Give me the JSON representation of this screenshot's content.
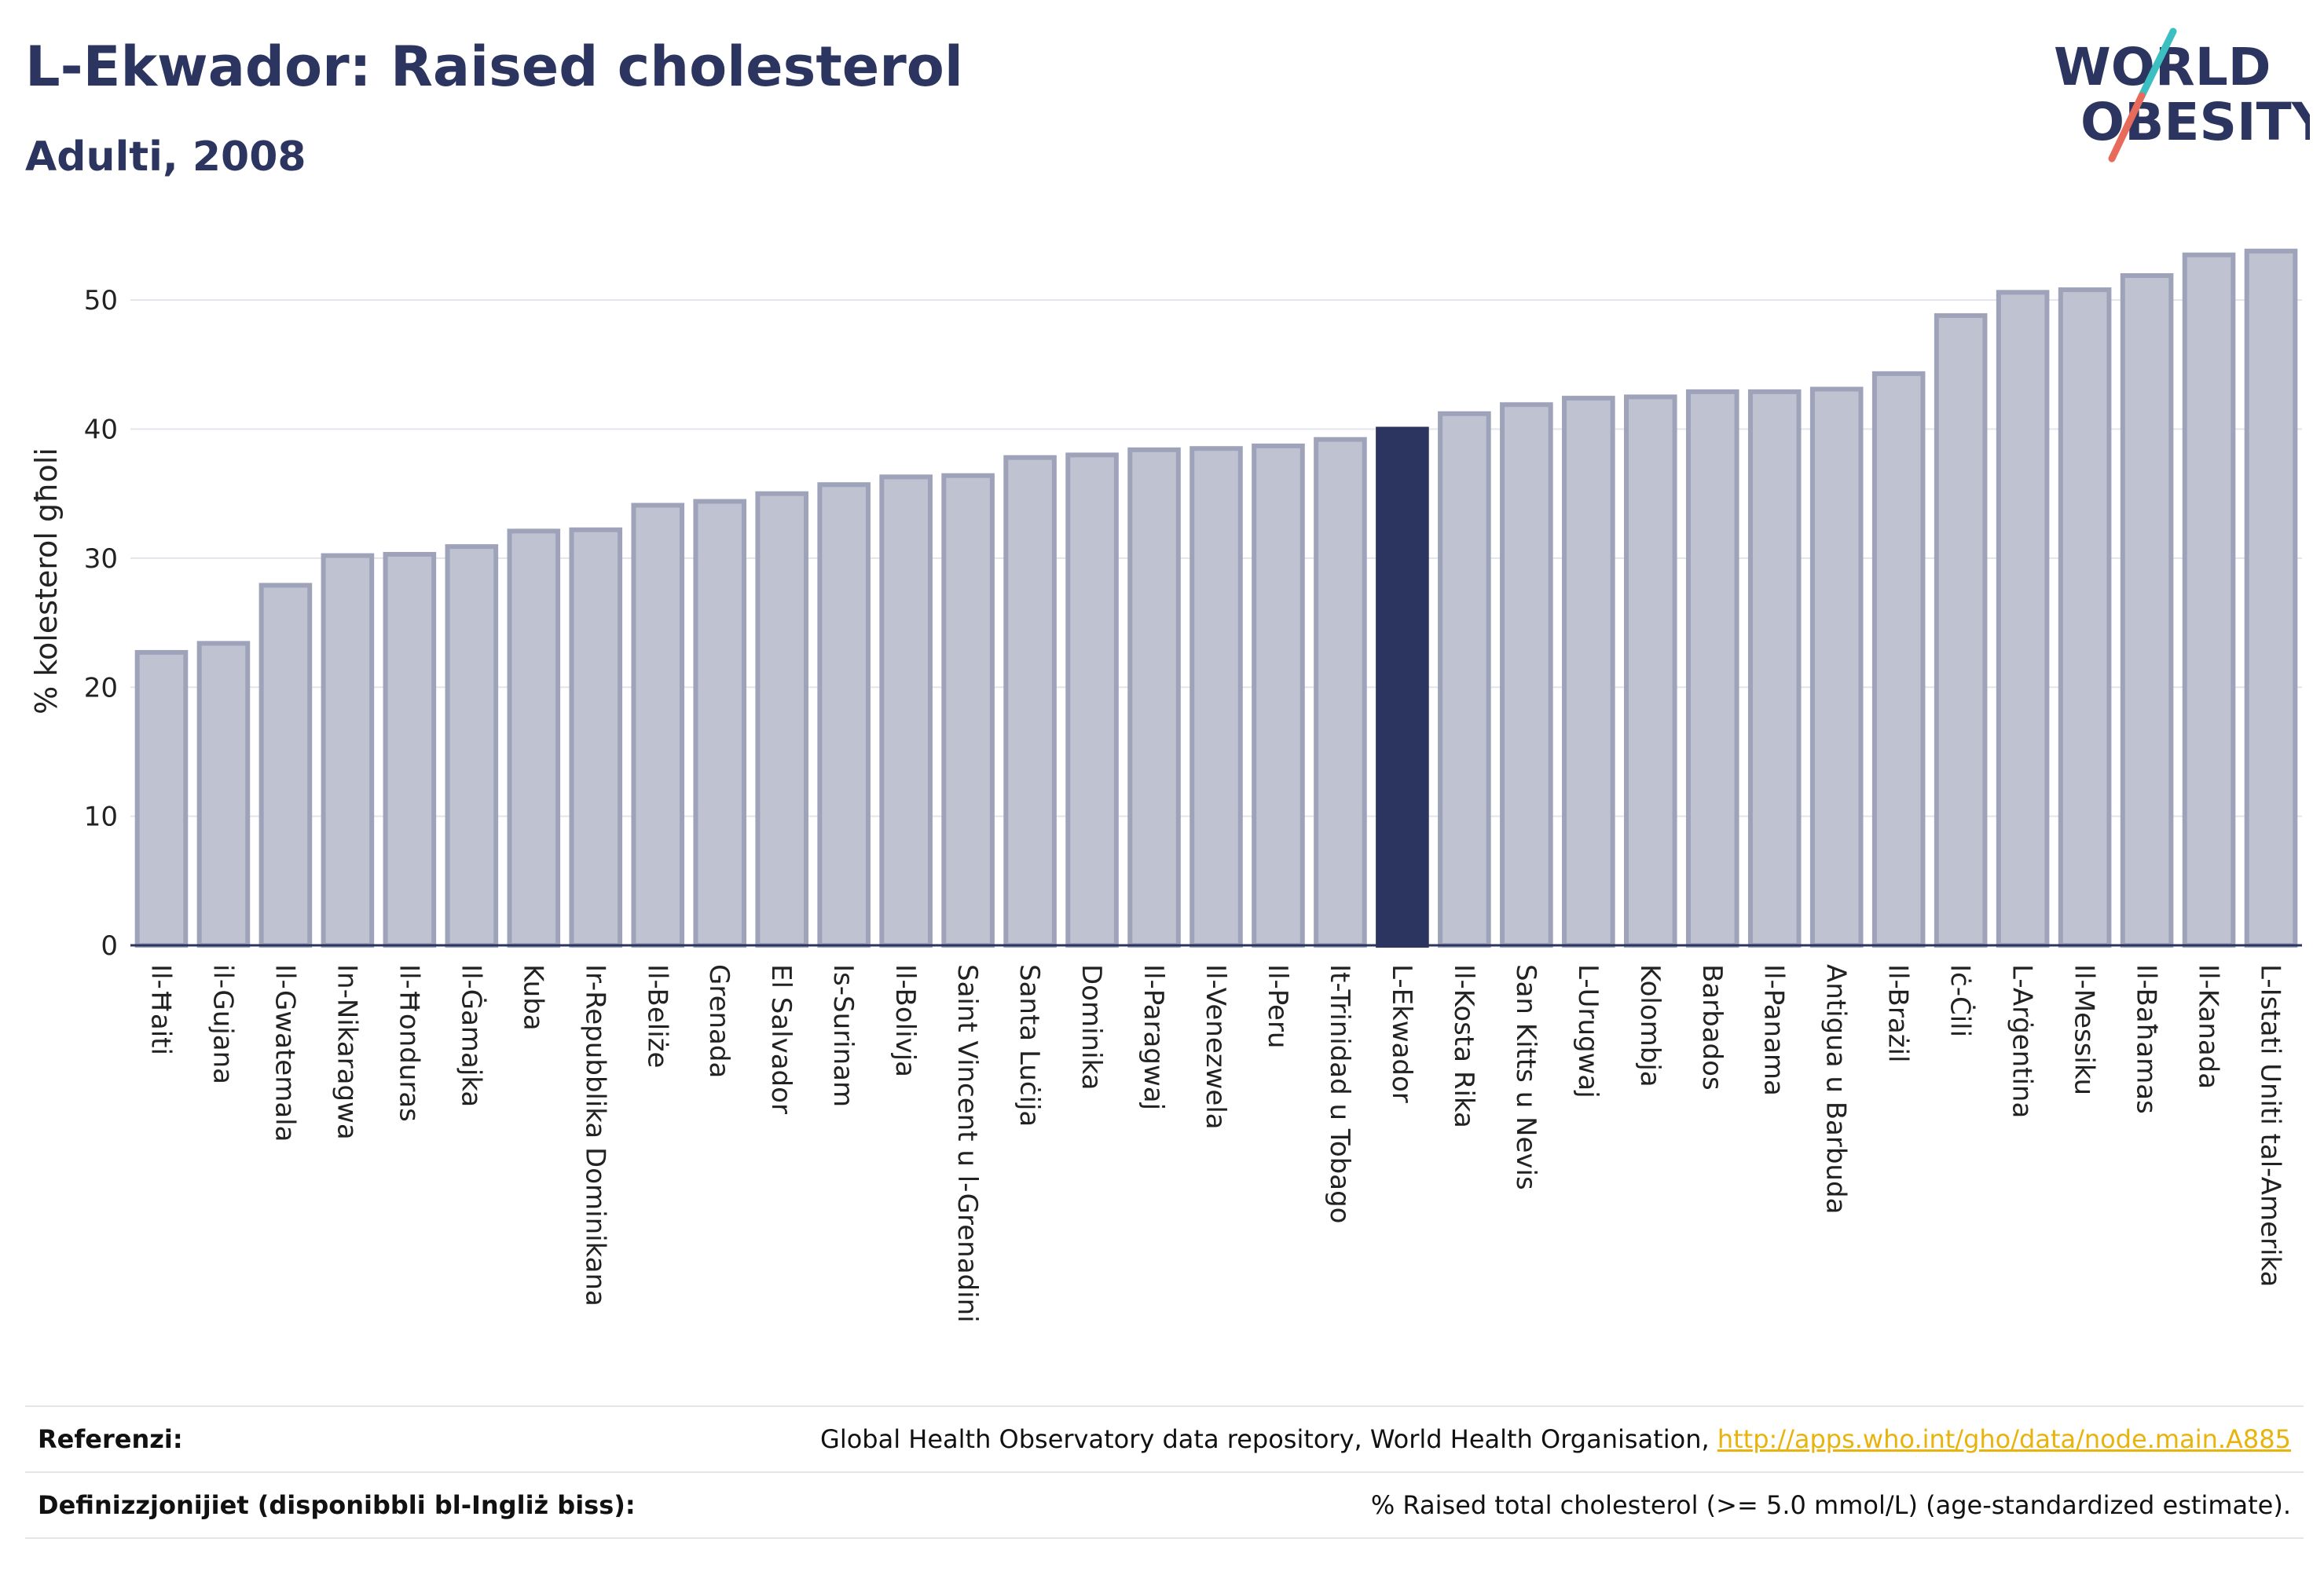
{
  "header": {
    "title": "L-Ekwador: Raised cholesterol",
    "subtitle": "Adulti, 2008"
  },
  "logo": {
    "line1": "WORLD",
    "line2": "OBESITY",
    "text_color": "#2b355f",
    "slash_colors": [
      "#3cbfc0",
      "#e86a5a"
    ]
  },
  "chart_data": {
    "type": "bar",
    "ylabel": "% kolesterol għoli",
    "ylim": [
      0,
      55
    ],
    "yticks": [
      0,
      10,
      20,
      30,
      40,
      50
    ],
    "grid": true,
    "highlight": "L-Ekwador",
    "colors": {
      "bar": "#bfc2d1",
      "bar_edge": "#9ea3ba",
      "highlight": "#2b355f"
    },
    "categories": [
      "Il-Ħaiti",
      "il-Gujana",
      "Il-Gwatemala",
      "In-Nikaragwa",
      "Il-Ħonduras",
      "Il-Ġamajka",
      "Kuba",
      "Ir-Repubblika Dominikana",
      "Il-Beliże",
      "Grenada",
      "El Salvador",
      "Is-Surinam",
      "Il-Bolivja",
      "Saint Vincent u l-Grenadini",
      "Santa Luċija",
      "Dominika",
      "Il-Paragwaj",
      "Il-Venezwela",
      "Il-Peru",
      "It-Trinidad u Tobago",
      "L-Ekwador",
      "Il-Kosta Rika",
      "San Kitts u Nevis",
      "L-Urugwaj",
      "Kolombja",
      "Barbados",
      "Il-Panama",
      "Antigua u Barbuda",
      "Il-Brażil",
      "Iċ-Ċili",
      "L-Arġentina",
      "Il-Messiku",
      "Il-Baħamas",
      "Il-Kanada",
      "L-Istati Uniti tal-Amerika"
    ],
    "values": [
      22.7,
      23.4,
      27.9,
      30.2,
      30.3,
      30.9,
      32.1,
      32.2,
      34.1,
      34.4,
      35.0,
      35.7,
      36.3,
      36.4,
      37.8,
      38.0,
      38.4,
      38.5,
      38.7,
      39.2,
      40.0,
      41.2,
      41.9,
      42.4,
      42.5,
      42.9,
      42.9,
      43.1,
      44.3,
      48.8,
      50.6,
      50.8,
      51.9,
      53.5,
      53.8
    ]
  },
  "footer": {
    "references_label": "Referenzi:",
    "references_text": "Global Health Observatory data repository, World Health Organisation,",
    "references_link": "http://apps.who.int/gho/data/node.main.A885",
    "definitions_label": "Definizzjonijiet (disponibbli bl-Ingliż biss):",
    "definitions_text": "% Raised total cholesterol (>= 5.0 mmol/L) (age-standardized estimate)."
  }
}
